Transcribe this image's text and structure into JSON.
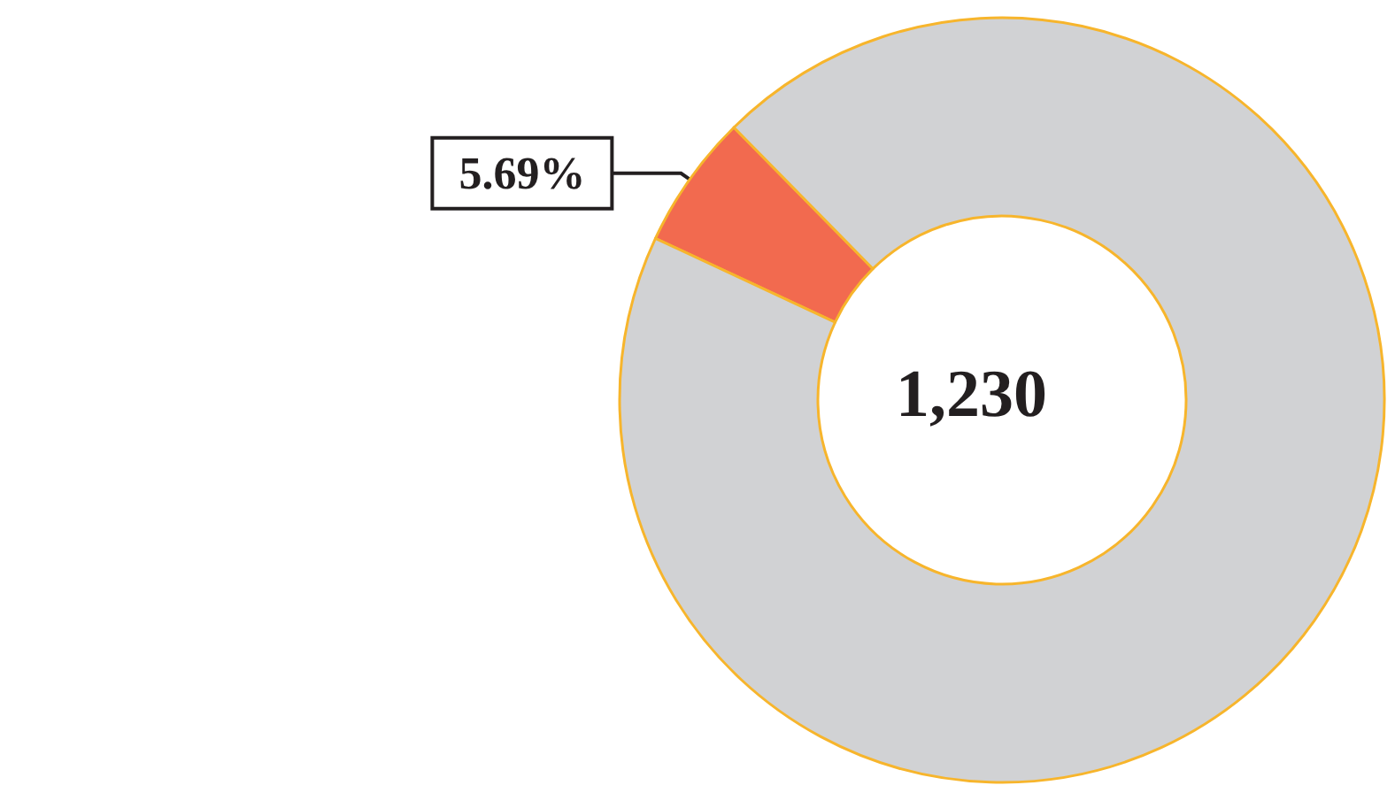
{
  "chart_data": {
    "type": "donut",
    "categories": [
      null,
      null
    ],
    "values": [
      5.69,
      94.31
    ],
    "colors": [
      "#f26a4f",
      "#d1d2d4"
    ],
    "value_labels": [
      "5.69%",
      null
    ],
    "annotations": [
      "1,230"
    ]
  }
}
